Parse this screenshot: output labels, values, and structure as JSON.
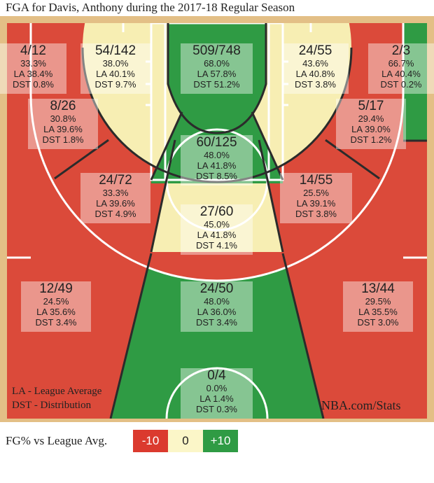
{
  "title": "FGA for Davis, Anthony during the 2017-18 Regular Season",
  "chart_data": {
    "type": "shot_chart",
    "title": "FGA for Davis, Anthony during the 2017-18 Regular Season",
    "zones": [
      {
        "id": "left-corner-3",
        "fgm_fga": "4/12",
        "fg_pct": "33.3%",
        "la": "LA 38.4%",
        "dst": "DST 0.8%",
        "fg_pct_value": 33.3,
        "la_value": 38.4,
        "dst_value": 0.8,
        "color": "#db4a3a"
      },
      {
        "id": "left-wing-mid-top",
        "fgm_fga": "54/142",
        "fg_pct": "38.0%",
        "la": "LA 40.1%",
        "dst": "DST 9.7%",
        "fg_pct_value": 38.0,
        "la_value": 40.1,
        "dst_value": 9.7,
        "color": "#f7eeb3"
      },
      {
        "id": "paint-non-ra",
        "fgm_fga": "509/748",
        "fg_pct": "68.0%",
        "la": "LA 57.8%",
        "dst": "DST 51.2%",
        "fg_pct_value": 68.0,
        "la_value": 57.8,
        "dst_value": 51.2,
        "color": "#2f9b44"
      },
      {
        "id": "right-wing-mid-top",
        "fgm_fga": "24/55",
        "fg_pct": "43.6%",
        "la": "LA 40.8%",
        "dst": "DST 3.8%",
        "fg_pct_value": 43.6,
        "la_value": 40.8,
        "dst_value": 3.8,
        "color": "#f7eeb3"
      },
      {
        "id": "right-corner-3",
        "fgm_fga": "2/3",
        "fg_pct": "66.7%",
        "la": "LA 40.4%",
        "dst": "DST 0.2%",
        "fg_pct_value": 66.7,
        "la_value": 40.4,
        "dst_value": 0.2,
        "color": "#2f9b44"
      },
      {
        "id": "left-baseline-mid",
        "fgm_fga": "8/26",
        "fg_pct": "30.8%",
        "la": "LA 39.6%",
        "dst": "DST 1.8%",
        "fg_pct_value": 30.8,
        "la_value": 39.6,
        "dst_value": 1.8,
        "color": "#db4a3a"
      },
      {
        "id": "right-baseline-mid",
        "fgm_fga": "5/17",
        "fg_pct": "29.4%",
        "la": "LA 39.0%",
        "dst": "DST 1.2%",
        "fg_pct_value": 29.4,
        "la_value": 39.0,
        "dst_value": 1.2,
        "color": "#db4a3a"
      },
      {
        "id": "center-paint-free-throw",
        "fgm_fga": "60/125",
        "fg_pct": "48.0%",
        "la": "LA 41.8%",
        "dst": "DST 8.5%",
        "fg_pct_value": 48.0,
        "la_value": 41.8,
        "dst_value": 8.5,
        "color": "#2f9b44"
      },
      {
        "id": "left-elbow-mid",
        "fgm_fga": "24/72",
        "fg_pct": "33.3%",
        "la": "LA 39.6%",
        "dst": "DST 4.9%",
        "fg_pct_value": 33.3,
        "la_value": 39.6,
        "dst_value": 4.9,
        "color": "#db4a3a"
      },
      {
        "id": "right-elbow-mid",
        "fgm_fga": "14/55",
        "fg_pct": "25.5%",
        "la": "LA 39.1%",
        "dst": "DST 3.8%",
        "fg_pct_value": 25.5,
        "la_value": 39.1,
        "dst_value": 3.8,
        "color": "#db4a3a"
      },
      {
        "id": "top-key-mid",
        "fgm_fga": "27/60",
        "fg_pct": "45.0%",
        "la": "LA 41.8%",
        "dst": "DST 4.1%",
        "fg_pct_value": 45.0,
        "la_value": 41.8,
        "dst_value": 4.1,
        "color": "#f7eeb3"
      },
      {
        "id": "left-wing-3",
        "fgm_fga": "12/49",
        "fg_pct": "24.5%",
        "la": "LA 35.6%",
        "dst": "DST 3.4%",
        "fg_pct_value": 24.5,
        "la_value": 35.6,
        "dst_value": 3.4,
        "color": "#db4a3a"
      },
      {
        "id": "top-key-3",
        "fgm_fga": "24/50",
        "fg_pct": "48.0%",
        "la": "LA 36.0%",
        "dst": "DST 3.4%",
        "fg_pct_value": 48.0,
        "la_value": 36.0,
        "dst_value": 3.4,
        "color": "#2f9b44"
      },
      {
        "id": "right-wing-3",
        "fgm_fga": "13/44",
        "fg_pct": "29.5%",
        "la": "LA 35.5%",
        "dst": "DST 3.0%",
        "fg_pct_value": 29.5,
        "la_value": 35.5,
        "dst_value": 3.0,
        "color": "#db4a3a"
      },
      {
        "id": "backcourt",
        "fgm_fga": "0/4",
        "fg_pct": "0.0%",
        "la": "LA 1.4%",
        "dst": "DST 0.3%",
        "fg_pct_value": 0.0,
        "la_value": 1.4,
        "dst_value": 0.3,
        "color": "#2f9b44"
      }
    ],
    "notes": [
      "LA - League Average",
      "DST - Distribution"
    ],
    "source": "NBA.com/Stats",
    "legend": {
      "title": "FG% vs League Avg.",
      "items": [
        {
          "label": "-10",
          "color": "#db3a2e",
          "text_color": "#ffffff"
        },
        {
          "label": "0",
          "color": "#fbf6c8",
          "text_color": "#222222"
        },
        {
          "label": "+10",
          "color": "#2f9b44",
          "text_color": "#ffffff"
        }
      ]
    },
    "colors": {
      "red": "#db4a3a",
      "yellow": "#f7eeb3",
      "green": "#2f9b44",
      "wood": "#e9c98e"
    }
  }
}
